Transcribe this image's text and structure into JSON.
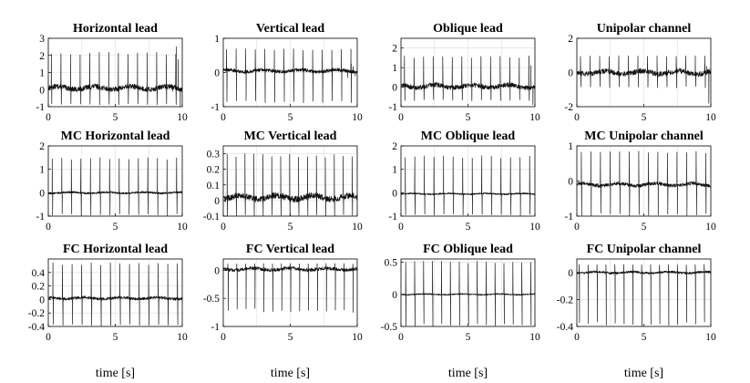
{
  "chart_data": [
    {
      "type": "line",
      "title": "Horizontal lead",
      "xlabel": "",
      "xlim": [
        0,
        10
      ],
      "ylim": [
        -1,
        3
      ],
      "xticks": [
        "0",
        "5",
        "10"
      ],
      "yticks": [
        "-1",
        "0",
        "1",
        "2",
        "3"
      ],
      "grid": true,
      "series": [
        {
          "x_range": [
            0,
            10
          ],
          "beats_per_10s": 14,
          "spike_peak": 2.2,
          "spike_trough": -0.9,
          "baseline": 0.1,
          "noise": 0.15,
          "end_artifact": {
            "x": [
              9.2,
              10
            ],
            "peak": 2.5,
            "trough": -1
          }
        }
      ]
    },
    {
      "type": "line",
      "title": "Vertical lead",
      "xlabel": "",
      "xlim": [
        0,
        10
      ],
      "ylim": [
        -1,
        1
      ],
      "xticks": [
        "0",
        "5",
        "10"
      ],
      "yticks": [
        "-1",
        "0",
        "1"
      ],
      "grid": true,
      "series": [
        {
          "x_range": [
            0,
            10
          ],
          "beats_per_10s": 14,
          "spike_peak": 0.7,
          "spike_trough": -0.9,
          "baseline": 0.05,
          "noise": 0.05,
          "end_artifact": {
            "x": [
              9.2,
              10
            ],
            "peak": 0.25,
            "trough": -0.1
          }
        }
      ]
    },
    {
      "type": "line",
      "title": "Oblique lead",
      "xlabel": "",
      "xlim": [
        0,
        10
      ],
      "ylim": [
        -1,
        2.5
      ],
      "xticks": [
        "0",
        "5",
        "10"
      ],
      "yticks": [
        "-1",
        "0",
        "1",
        "2"
      ],
      "grid": true,
      "series": [
        {
          "x_range": [
            0,
            10
          ],
          "beats_per_10s": 14,
          "spike_peak": 1.6,
          "spike_trough": -0.7,
          "baseline": 0.05,
          "noise": 0.12,
          "end_artifact": {
            "x": [
              9.2,
              10
            ],
            "peak": 1.6,
            "trough": -0.9
          }
        }
      ]
    },
    {
      "type": "line",
      "title": "Unipolar channel",
      "xlabel": "",
      "xlim": [
        0,
        10
      ],
      "ylim": [
        -2,
        2
      ],
      "xticks": [
        "0",
        "5",
        "10"
      ],
      "yticks": [
        "-2",
        "0",
        "2"
      ],
      "grid": true,
      "series": [
        {
          "x_range": [
            0,
            10
          ],
          "beats_per_10s": 14,
          "spike_peak": 1.0,
          "spike_trough": -0.9,
          "baseline": 0.0,
          "noise": 0.15,
          "end_artifact": {
            "x": [
              9.2,
              10
            ],
            "peak": 0.5,
            "trough": -1.8
          }
        }
      ]
    },
    {
      "type": "line",
      "title": "MC Horizontal lead",
      "xlabel": "",
      "xlim": [
        0,
        10
      ],
      "ylim": [
        -1,
        2
      ],
      "xticks": [
        "0",
        "5",
        "10"
      ],
      "yticks": [
        "-1",
        "0",
        "1",
        "2"
      ],
      "grid": true,
      "series": [
        {
          "x_range": [
            0,
            10
          ],
          "beats_per_10s": 14,
          "spike_peak": 1.5,
          "spike_trough": -1.0,
          "baseline": 0.0,
          "noise": 0.04
        }
      ]
    },
    {
      "type": "line",
      "title": "MC Vertical lead",
      "xlabel": "",
      "xlim": [
        0,
        10
      ],
      "ylim": [
        -0.1,
        0.35
      ],
      "xticks": [
        "0",
        "5",
        "10"
      ],
      "yticks": [
        "-0.1",
        "0",
        "0.1",
        "0.2",
        "0.3"
      ],
      "grid": true,
      "series": [
        {
          "x_range": [
            0,
            10
          ],
          "beats_per_10s": 15,
          "spike_peak": 0.3,
          "spike_trough": -0.1,
          "baseline": 0.02,
          "noise": 0.02
        }
      ]
    },
    {
      "type": "line",
      "title": "MC Oblique lead",
      "xlabel": "",
      "xlim": [
        0,
        10
      ],
      "ylim": [
        -1,
        2
      ],
      "xticks": [
        "0",
        "5",
        "10"
      ],
      "yticks": [
        "-1",
        "0",
        "1",
        "2"
      ],
      "grid": true,
      "series": [
        {
          "x_range": [
            0,
            10
          ],
          "beats_per_10s": 14,
          "spike_peak": 1.6,
          "spike_trough": -1.0,
          "baseline": -0.05,
          "noise": 0.03
        }
      ]
    },
    {
      "type": "line",
      "title": "MC Unipolar channel",
      "xlabel": "",
      "xlim": [
        0,
        10
      ],
      "ylim": [
        -1,
        1
      ],
      "xticks": [
        "0",
        "5",
        "10"
      ],
      "yticks": [
        "-1",
        "0",
        "1"
      ],
      "grid": true,
      "series": [
        {
          "x_range": [
            0,
            10
          ],
          "beats_per_10s": 14,
          "spike_peak": 0.85,
          "spike_trough": -1.0,
          "baseline": -0.1,
          "noise": 0.05
        }
      ]
    },
    {
      "type": "line",
      "title": "FC Horizontal lead",
      "xlabel": "time [s]",
      "xlim": [
        0,
        10
      ],
      "ylim": [
        -0.4,
        0.6
      ],
      "xticks": [
        "0",
        "5",
        "10"
      ],
      "yticks": [
        "-0.4",
        "-0.2",
        "0",
        "0.2",
        "0.4"
      ],
      "grid": true,
      "series": [
        {
          "x_range": [
            0,
            10
          ],
          "beats_per_10s": 14,
          "spike_peak": 0.55,
          "spike_trough": -0.4,
          "baseline": 0.02,
          "noise": 0.02
        }
      ]
    },
    {
      "type": "line",
      "title": "FC Vertical lead",
      "xlabel": "time [s]",
      "xlim": [
        0,
        10
      ],
      "ylim": [
        -1,
        0.2
      ],
      "xticks": [
        "0",
        "5",
        "10"
      ],
      "yticks": [
        "-1",
        "-0.5",
        "0"
      ],
      "grid": true,
      "series": [
        {
          "x_range": [
            0,
            10
          ],
          "beats_per_10s": 15,
          "spike_peak": 0.12,
          "spike_trough": -0.75,
          "baseline": 0.02,
          "noise": 0.03
        }
      ]
    },
    {
      "type": "line",
      "title": "FC Oblique lead",
      "xlabel": "time [s]",
      "xlim": [
        0,
        10
      ],
      "ylim": [
        -0.5,
        0.55
      ],
      "xticks": [
        "0",
        "5",
        "10"
      ],
      "yticks": [
        "-0.5",
        "0",
        "0.5"
      ],
      "grid": true,
      "series": [
        {
          "x_range": [
            0,
            10
          ],
          "beats_per_10s": 15,
          "spike_peak": 0.52,
          "spike_trough": -0.5,
          "baseline": 0.0,
          "noise": 0.01
        }
      ]
    },
    {
      "type": "line",
      "title": "FC Unipolar channel",
      "xlabel": "time [s]",
      "xlim": [
        0,
        10
      ],
      "ylim": [
        -0.4,
        0.1
      ],
      "xticks": [
        "0",
        "5",
        "10"
      ],
      "yticks": [
        "-0.4",
        "-0.2",
        "0"
      ],
      "grid": true,
      "series": [
        {
          "x_range": [
            0,
            10
          ],
          "beats_per_10s": 15,
          "spike_peak": 0.06,
          "spike_trough": -0.4,
          "baseline": 0.0,
          "noise": 0.008
        }
      ]
    }
  ]
}
